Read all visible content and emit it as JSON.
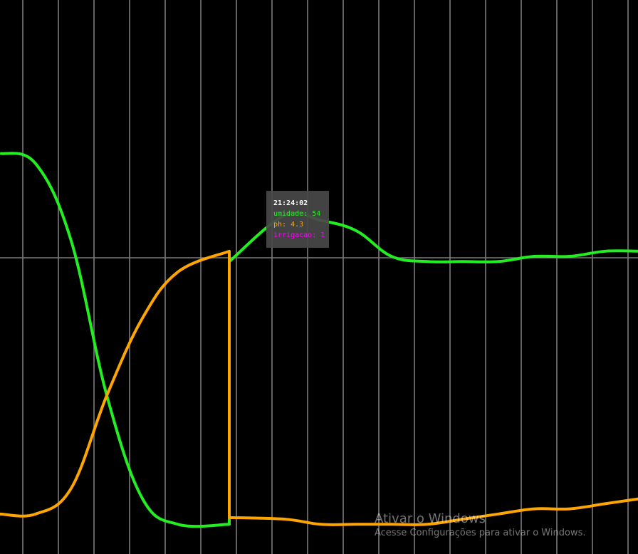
{
  "chart_data": {
    "type": "line",
    "title": "",
    "xlabel": "",
    "ylabel": "",
    "ylim": [
      0,
      100
    ],
    "grid": true,
    "x": [
      0,
      1,
      2,
      3,
      4,
      5,
      6,
      7,
      8,
      9,
      10,
      11,
      12,
      13,
      14,
      15,
      16,
      17,
      18
    ],
    "series": [
      {
        "name": "umidade",
        "color": "#22ee22",
        "values": [
          75,
          73,
          58,
          28,
          8,
          3,
          3,
          54,
          63,
          62,
          60,
          55,
          54,
          54,
          54,
          55,
          55,
          56,
          56
        ]
      },
      {
        "name": "ph",
        "color": "#ffa500",
        "values": [
          5,
          5,
          10,
          28,
          43,
          52,
          56,
          4.3,
          4,
          3,
          3,
          3,
          3,
          4,
          5,
          6,
          6,
          7,
          8
        ]
      }
    ]
  },
  "tooltip": {
    "time": "21:24:02",
    "rows": [
      {
        "label": "umidade",
        "value": "54",
        "color": "#22ee22"
      },
      {
        "label": "ph",
        "value": "4.3",
        "color": "#ffa500"
      },
      {
        "label": "irrigacao",
        "value": "1",
        "color": "#ff00ff"
      }
    ]
  },
  "watermark": {
    "title": "Ativar o Windows",
    "subtitle": "Acesse Configurações para ativar o Windows."
  }
}
